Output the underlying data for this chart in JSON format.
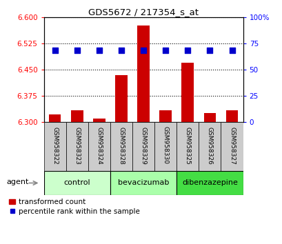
{
  "title": "GDS5672 / 217354_s_at",
  "categories": [
    "GSM958322",
    "GSM958323",
    "GSM958324",
    "GSM958328",
    "GSM958329",
    "GSM958330",
    "GSM958325",
    "GSM958326",
    "GSM958327"
  ],
  "bar_values": [
    6.322,
    6.333,
    6.31,
    6.435,
    6.575,
    6.333,
    6.47,
    6.325,
    6.333
  ],
  "percentile_values": [
    68,
    68,
    68,
    68,
    68,
    68,
    68,
    68,
    68
  ],
  "ylim_left": [
    6.3,
    6.6
  ],
  "ylim_right": [
    0,
    100
  ],
  "yticks_left": [
    6.3,
    6.375,
    6.45,
    6.525,
    6.6
  ],
  "yticks_right": [
    0,
    25,
    50,
    75,
    100
  ],
  "bar_color": "#cc0000",
  "dot_color": "#0000cc",
  "sample_box_color": "#cccccc",
  "groups": [
    {
      "label": "control",
      "start": 0,
      "end": 2,
      "color": "#ccffcc"
    },
    {
      "label": "bevacizumab",
      "start": 3,
      "end": 5,
      "color": "#aaffaa"
    },
    {
      "label": "dibenzazepine",
      "start": 6,
      "end": 8,
      "color": "#44dd44"
    }
  ],
  "agent_label": "agent",
  "legend_labels": [
    "transformed count",
    "percentile rank within the sample"
  ]
}
